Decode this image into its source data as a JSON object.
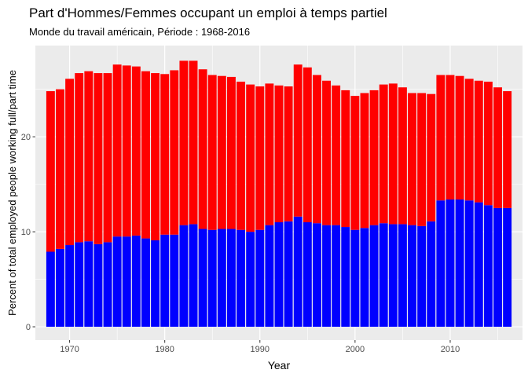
{
  "chart_data": {
    "type": "bar",
    "stacked": true,
    "title": "Part d'Hommes/Femmes occupant un emploi à temps partiel",
    "subtitle": "Monde du travail américain, Période : 1968-2016",
    "xlabel": "Year",
    "ylabel": "Percent of total employed people working full/part time",
    "xlim": [
      1966.4,
      2017.6
    ],
    "ylim": [
      -1.4,
      29.6
    ],
    "x_ticks": [
      1970,
      1980,
      1990,
      2000,
      2010
    ],
    "y_ticks": [
      0,
      10,
      20
    ],
    "grid": true,
    "legend": "none",
    "colors": {
      "lower": "#0000ff",
      "upper": "#ff0000",
      "panel": "#ebebeb",
      "grid": "#ffffff"
    },
    "x": [
      1968,
      1969,
      1970,
      1971,
      1972,
      1973,
      1974,
      1975,
      1976,
      1977,
      1978,
      1979,
      1980,
      1981,
      1982,
      1983,
      1984,
      1985,
      1986,
      1987,
      1988,
      1989,
      1990,
      1991,
      1992,
      1993,
      1994,
      1995,
      1996,
      1997,
      1998,
      1999,
      2000,
      2001,
      2002,
      2003,
      2004,
      2005,
      2006,
      2007,
      2008,
      2009,
      2010,
      2011,
      2012,
      2013,
      2014,
      2015,
      2016
    ],
    "series": [
      {
        "values": [
          7.9,
          8.2,
          8.6,
          8.9,
          9.0,
          8.7,
          8.9,
          9.5,
          9.5,
          9.6,
          9.3,
          9.1,
          9.7,
          9.7,
          10.7,
          10.8,
          10.3,
          10.2,
          10.3,
          10.3,
          10.2,
          10.0,
          10.2,
          10.7,
          11.0,
          11.1,
          11.6,
          11.0,
          10.9,
          10.7,
          10.7,
          10.5,
          10.2,
          10.4,
          10.7,
          10.9,
          10.8,
          10.8,
          10.7,
          10.6,
          11.1,
          13.3,
          13.4,
          13.4,
          13.3,
          13.1,
          12.8,
          12.5,
          12.5
        ]
      },
      {
        "values": [
          16.9,
          16.8,
          17.5,
          17.8,
          17.9,
          18.0,
          17.8,
          18.1,
          18.0,
          17.8,
          17.6,
          17.6,
          16.9,
          17.3,
          17.3,
          17.2,
          16.8,
          16.3,
          16.1,
          16.0,
          15.6,
          15.5,
          15.1,
          14.9,
          14.4,
          14.2,
          16.0,
          16.3,
          15.6,
          15.2,
          14.7,
          14.4,
          14.1,
          14.2,
          14.2,
          14.6,
          14.8,
          14.4,
          13.9,
          14.0,
          13.4,
          13.2,
          13.1,
          13.0,
          12.8,
          12.8,
          13.0,
          12.7,
          12.3
        ]
      }
    ]
  }
}
